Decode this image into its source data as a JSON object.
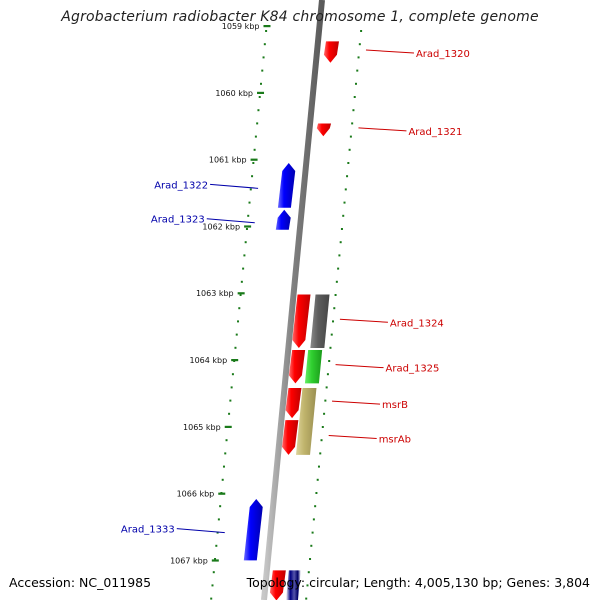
{
  "title": "Agrobacterium radiobacter K84 chromosome 1, complete genome",
  "footer": {
    "accession": "Accession: NC_011985",
    "info": "Topology: circular; Length: 4,005,130 bp; Genes: 3,804"
  },
  "colors": {
    "forward_label": "#cc0000",
    "reverse_label": "#0000aa",
    "forward_gene": "#ff0000",
    "reverse_gene": "#0000ff",
    "tick": "#1a7a1a",
    "backbone": "#808080"
  },
  "kbp_marks": [
    {
      "label": "1059 kbp",
      "pos": 0
    },
    {
      "label": "1060 kbp",
      "pos": 1
    },
    {
      "label": "1061 kbp",
      "pos": 2
    },
    {
      "label": "1062 kbp",
      "pos": 3
    },
    {
      "label": "1063 kbp",
      "pos": 4
    },
    {
      "label": "1064 kbp",
      "pos": 5
    },
    {
      "label": "1065 kbp",
      "pos": 6
    },
    {
      "label": "1066 kbp",
      "pos": 7
    },
    {
      "label": "1067 kbp",
      "pos": 8
    }
  ],
  "genes": [
    {
      "name": "Arad_1320",
      "strand": "+",
      "color": "red",
      "start": 0.23,
      "end": 0.55
    },
    {
      "name": "Arad_1321",
      "strand": "+",
      "color": "red",
      "start": 1.46,
      "end": 1.65
    },
    {
      "name": "Arad_1322",
      "strand": "-",
      "color": "blue",
      "start": 2.05,
      "end": 2.72
    },
    {
      "name": "Arad_1323",
      "strand": "-",
      "color": "blue",
      "start": 2.75,
      "end": 3.05
    },
    {
      "name": "",
      "strand": "+",
      "color": "red",
      "start": 4.02,
      "end": 4.82
    },
    {
      "name": "Arad_1324",
      "strand": "+",
      "color": "gray",
      "start": 4.02,
      "end": 4.82
    },
    {
      "name": "",
      "strand": "+",
      "color": "red",
      "start": 4.85,
      "end": 5.35
    },
    {
      "name": "Arad_1325",
      "strand": "+",
      "color": "green",
      "start": 4.85,
      "end": 5.35
    },
    {
      "name": "msrB",
      "strand": "+",
      "color": "red",
      "start": 5.42,
      "end": 5.87
    },
    {
      "name": "msrAb",
      "strand": "+",
      "color": "red",
      "start": 5.9,
      "end": 6.42
    },
    {
      "name": "",
      "strand": "+",
      "color": "khaki",
      "start": 5.42,
      "end": 6.42
    },
    {
      "name": "Arad_1333",
      "strand": "-",
      "color": "blue",
      "start": 7.08,
      "end": 8.0
    },
    {
      "name": "",
      "strand": "+",
      "color": "red",
      "start": 8.15,
      "end": 8.6
    },
    {
      "name": "",
      "strand": "+",
      "color": "navy",
      "start": 8.15,
      "end": 8.6
    }
  ]
}
